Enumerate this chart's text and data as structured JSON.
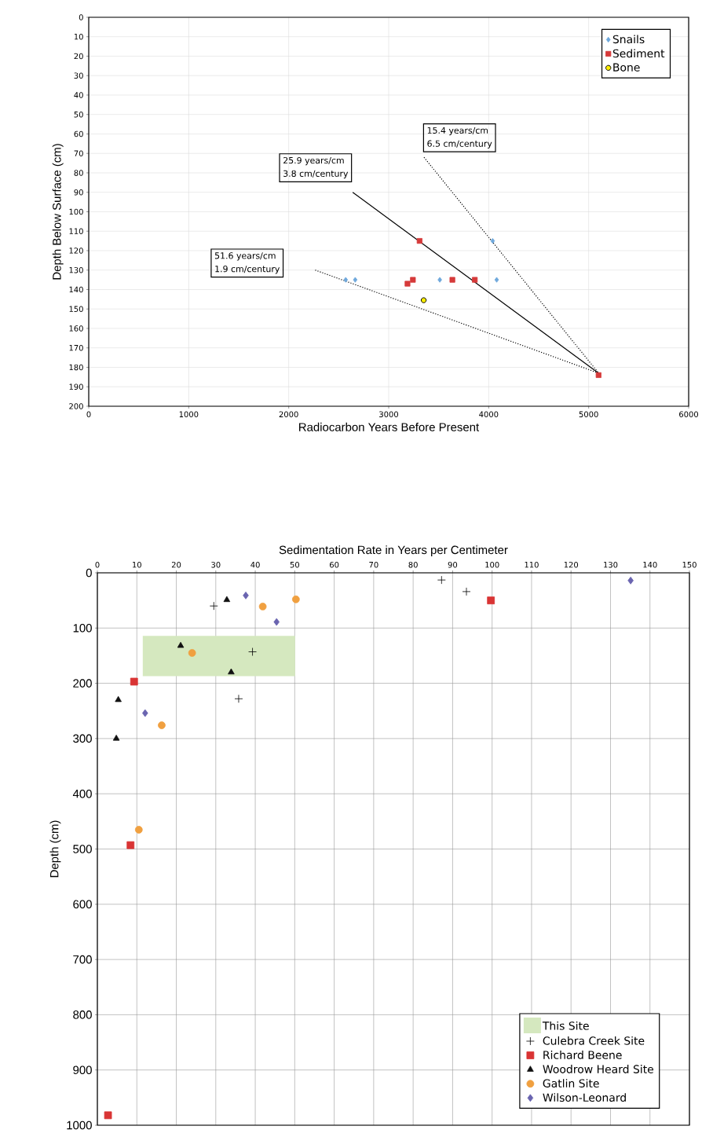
{
  "chart_data": [
    {
      "type": "scatter",
      "xlabel": "Radiocarbon Years Before Present",
      "ylabel": "Depth Below Surface (cm)",
      "xlim": [
        0,
        6000
      ],
      "xticks": [
        0,
        1000,
        2000,
        3000,
        4000,
        5000,
        6000
      ],
      "ylim": [
        200,
        0
      ],
      "yticks": [
        0,
        10,
        20,
        30,
        40,
        50,
        60,
        70,
        80,
        90,
        100,
        110,
        120,
        130,
        140,
        150,
        160,
        170,
        180,
        190,
        200
      ],
      "grid": true,
      "legend": "top right",
      "annotations": [
        "25.9 years/cm",
        "3.8 cm/century",
        "15.4 years/cm",
        "6.5 cm/century",
        "51.6 years/cm",
        "1.9 cm/century"
      ],
      "series": [
        {
          "name": "Snails",
          "color": "#6fa8dc",
          "marker": "diamond",
          "x": [
            2570,
            2665,
            3511,
            4040,
            4080
          ],
          "values": [
            135,
            135,
            135,
            115,
            135
          ]
        },
        {
          "name": "Sediment",
          "color": "#d63a3a",
          "marker": "square",
          "x": [
            3188,
            3242,
            3309,
            3637,
            3861,
            5099
          ],
          "values": [
            137,
            135,
            115,
            135,
            135,
            184
          ]
        },
        {
          "name": "Bone",
          "color": "#ffee00",
          "marker": "circle",
          "x": [
            3350
          ],
          "values": [
            145.5
          ]
        },
        {
          "type": "line",
          "color": "#000000",
          "line_style": "solid",
          "x": [
            2640,
            5100
          ],
          "values": [
            90,
            183
          ]
        },
        {
          "type": "line",
          "color": "#000000",
          "line_style": "dotted",
          "x": [
            3353,
            5100
          ],
          "values": [
            72,
            183
          ]
        },
        {
          "type": "line",
          "color": "#000000",
          "line_style": "dotted",
          "x": [
            2265,
            5100
          ],
          "values": [
            130,
            183
          ]
        }
      ]
    },
    {
      "type": "scatter",
      "xlabel": "Sedimentation Rate in Years per Centimeter",
      "ylabel": "Depth (cm)",
      "xlim": [
        0,
        150
      ],
      "xticks": [
        0,
        10,
        20,
        30,
        40,
        50,
        60,
        70,
        80,
        90,
        100,
        110,
        120,
        130,
        140,
        150
      ],
      "ylim": [
        1000,
        0
      ],
      "yticks": [
        0,
        100,
        200,
        300,
        400,
        500,
        600,
        700,
        800,
        900,
        1000
      ],
      "grid": true,
      "legend": "bottom right",
      "series": [
        {
          "name": "This Site",
          "type": "area",
          "color": "#d5e8bf",
          "x": [
            11.5,
            11.5,
            50.1,
            50.1
          ],
          "values": [
            187,
            114,
            114,
            187
          ]
        },
        {
          "name": "Culebra Creek Site",
          "color": "#000000",
          "marker": "cross",
          "x": [
            29.5,
            39.3,
            35.8,
            87.2,
            93.5
          ],
          "values": [
            60,
            143,
            228,
            13,
            34
          ]
        },
        {
          "name": "Richard Beene",
          "color": "#d93434",
          "marker": "square",
          "x": [
            9.3,
            99.7,
            8.4,
            2.7
          ],
          "values": [
            197,
            50,
            493,
            982
          ]
        },
        {
          "name": "Woodrow Heard Site",
          "color": "#111111",
          "marker": "triangle",
          "x": [
            32.8,
            21.1,
            33.9,
            5.3,
            4.8
          ],
          "values": [
            49,
            132,
            180,
            230,
            300
          ]
        },
        {
          "name": "Gatlin Site",
          "color": "#f0a040",
          "marker": "circle",
          "x": [
            41.9,
            50.3,
            24,
            16.3,
            10.5
          ],
          "values": [
            61,
            48,
            145,
            276,
            465
          ]
        },
        {
          "name": "Wilson-Leonard",
          "color": "#6a64b0",
          "marker": "diamond",
          "x": [
            37.6,
            45.4,
            12.1,
            135.1
          ],
          "values": [
            41,
            89,
            254,
            14
          ]
        }
      ]
    }
  ]
}
